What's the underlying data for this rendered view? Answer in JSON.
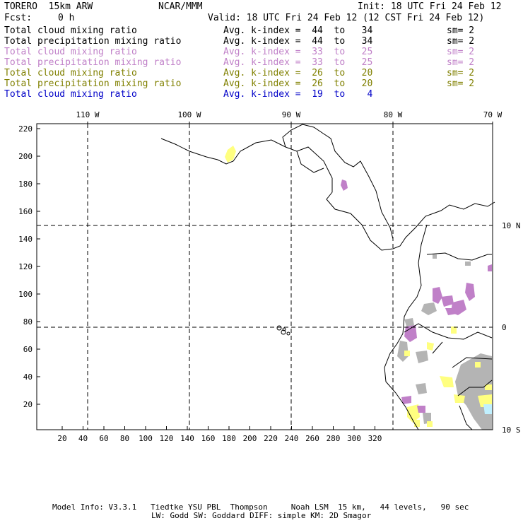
{
  "header": {
    "model": "TORERO  15km ARW",
    "org": "NCAR/MMM",
    "init": "Init: 18 UTC Fri 24 Feb 12",
    "fcst_label": "Fcst:",
    "fcst_value": "0 h",
    "valid": "Valid: 18 UTC Fri 24 Feb 12 (12 CST Fri 24 Feb 12)"
  },
  "legend": [
    {
      "field": "Total cloud mixing ratio",
      "kindex": "Avg. k-index =  44  to   34",
      "sm": "sm= 2",
      "color": "#000000"
    },
    {
      "field": "Total precipitation mixing ratio",
      "kindex": "Avg. k-index =  44  to   34",
      "sm": "sm= 2",
      "color": "#000000"
    },
    {
      "field": "Total cloud mixing ratio",
      "kindex": "Avg. k-index =  33  to   25",
      "sm": "sm= 2",
      "color": "#c080c8"
    },
    {
      "field": "Total precipitation mixing ratio",
      "kindex": "Avg. k-index =  33  to   25",
      "sm": "sm= 2",
      "color": "#c080c8"
    },
    {
      "field": "Total cloud mixing ratio",
      "kindex": "Avg. k-index =  26  to   20",
      "sm": "sm= 2",
      "color": "#808000"
    },
    {
      "field": "Total precipitation mixing ratio",
      "kindex": "Avg. k-index =  26  to   20",
      "sm": "sm= 2",
      "color": "#808000"
    },
    {
      "field": "Total cloud mixing ratio",
      "kindex": "Avg. k-index =  19  to    4",
      "sm": "",
      "color": "#0000c8"
    }
  ],
  "map": {
    "top_lon_labels": [
      "110 W",
      "100 W",
      "90 W",
      "80 W",
      "70 W"
    ],
    "right_lat_labels": [
      "10 N",
      "0",
      "10 S"
    ],
    "left_ticks": [
      "220",
      "200",
      "180",
      "160",
      "140",
      "120",
      "100",
      "80",
      "60",
      "40",
      "20"
    ],
    "bottom_ticks": [
      "20",
      "40",
      "60",
      "80",
      "100",
      "120",
      "140",
      "160",
      "180",
      "200",
      "220",
      "240",
      "260",
      "280",
      "300",
      "320"
    ],
    "colors": {
      "gray": "#b4b4b4",
      "purple": "#c080c8",
      "yellow": "#ffff80",
      "cyan": "#c0f0ff"
    }
  },
  "footer": {
    "line1": "Model Info: V3.3.1   Tiedtke YSU PBL  Thompson     Noah LSM  15 km,   44 levels,   90 sec",
    "line2": "LW: Godd SW: Goddard DIFF: simple KM: 2D Smagor"
  }
}
